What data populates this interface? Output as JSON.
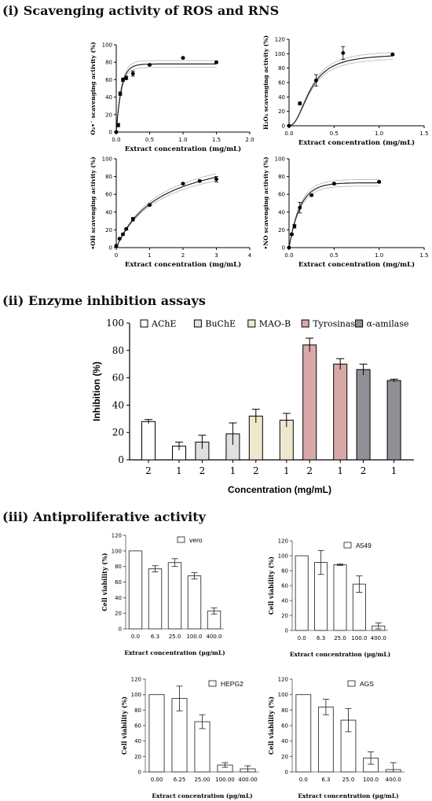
{
  "sections": {
    "ros": "(i) Scavenging activity of ROS and RNS",
    "enzyme": "(ii) Enzyme inhibition assays",
    "anti": "(iii) Antiproliferative activity"
  },
  "chart_data": [
    {
      "id": "o2",
      "type": "scatter",
      "xlabel": "Extract concentration (mg/mL)",
      "ylabel": "O₂•⁻ scavenging activity (%)",
      "xlim": [
        0,
        2
      ],
      "ylim": [
        0,
        100
      ],
      "xticks": [
        "0.0",
        "0.5",
        "1.0",
        "1.5",
        "2.0"
      ],
      "yticks": [
        "0",
        "20",
        "40",
        "60",
        "80",
        "100"
      ],
      "x": [
        0,
        0.03,
        0.06,
        0.1,
        0.15,
        0.25,
        0.5,
        1.0,
        1.5
      ],
      "y": [
        0,
        8,
        44,
        60,
        62,
        67,
        77,
        85,
        80
      ],
      "err": [
        0,
        2,
        2,
        2,
        2,
        3,
        1,
        1,
        1
      ],
      "fit": {
        "model": "exp",
        "ymax": 78,
        "k": 13
      }
    },
    {
      "id": "h2o2",
      "type": "scatter",
      "xlabel": "Extract concentration (mg/mL)",
      "ylabel": "H₂O₂ scavenging activity (%)",
      "xlim": [
        0,
        1.5
      ],
      "ylim": [
        0,
        120
      ],
      "xticks": [
        "0.0",
        "0.5",
        "1.0",
        "1.5"
      ],
      "yticks": [
        "0",
        "20",
        "40",
        "60",
        "80",
        "100",
        "120"
      ],
      "x": [
        0,
        0.12,
        0.3,
        0.6,
        1.15
      ],
      "y": [
        0,
        31,
        63,
        101,
        99
      ],
      "err": [
        0,
        2,
        8,
        9,
        1
      ],
      "fit": {
        "model": "sigmoid",
        "ymax": 100,
        "x50": 0.24,
        "h": 2.2
      }
    },
    {
      "id": "oh",
      "type": "scatter",
      "xlabel": "Extract concentration (mg/mL)",
      "ylabel": "•OH scavenging activity (%)",
      "xlim": [
        0,
        4
      ],
      "ylim": [
        0,
        100
      ],
      "xticks": [
        "0",
        "1",
        "2",
        "3",
        "4"
      ],
      "yticks": [
        "0",
        "20",
        "40",
        "60",
        "80",
        "100"
      ],
      "x": [
        0,
        0.1,
        0.2,
        0.3,
        0.5,
        1.0,
        2.0,
        2.5,
        3.0
      ],
      "y": [
        2,
        10,
        15,
        21,
        32,
        48,
        72,
        75,
        77
      ],
      "err": [
        1,
        1,
        1,
        1,
        2,
        1,
        1,
        1,
        3
      ],
      "fit": {
        "model": "hyper",
        "ymax": 115,
        "km": 1.35
      }
    },
    {
      "id": "no",
      "type": "scatter",
      "xlabel": "Extract concentration (mg/mL)",
      "ylabel": "•NO scavenging activity (%)",
      "xlim": [
        0,
        1.5
      ],
      "ylim": [
        0,
        100
      ],
      "xticks": [
        "0.0",
        "0.5",
        "1.0",
        "1.5"
      ],
      "yticks": [
        "0",
        "20",
        "40",
        "60",
        "80",
        "100"
      ],
      "x": [
        0,
        0.03,
        0.06,
        0.12,
        0.25,
        0.5,
        1.0
      ],
      "y": [
        0,
        15,
        24,
        45,
        59,
        72,
        74
      ],
      "err": [
        0,
        1,
        2,
        6,
        1,
        1,
        1
      ],
      "fit": {
        "model": "exp",
        "ymax": 73,
        "k": 8
      }
    },
    {
      "id": "enzyme",
      "type": "bar",
      "xlabel": "Concentration (mg/mL)",
      "ylabel": "Inhibition (%)",
      "ylim": [
        0,
        100
      ],
      "yticks": [
        "0",
        "20",
        "40",
        "60",
        "80",
        "100"
      ],
      "categories": [
        "2",
        "1"
      ],
      "legend_position": "top",
      "series": [
        {
          "name": "AChE",
          "color": "#ffffff",
          "values": [
            28,
            10
          ],
          "err": [
            1.5,
            3
          ]
        },
        {
          "name": "BuChE",
          "color": "#e0e0e0",
          "values": [
            13,
            19
          ],
          "err": [
            5,
            8
          ]
        },
        {
          "name": "MAO-B",
          "color": "#efe8cf",
          "values": [
            32,
            29
          ],
          "err": [
            5,
            5
          ]
        },
        {
          "name": "Tyrosinase",
          "color": "#d9a9a8",
          "values": [
            84,
            70
          ],
          "err": [
            5,
            4
          ]
        },
        {
          "name": "α-amilase",
          "color": "#909097",
          "values": [
            66,
            58
          ],
          "err": [
            4,
            1
          ]
        }
      ]
    },
    {
      "id": "vero",
      "type": "bar",
      "legend": "vero",
      "xlabel": "Extract concentration (µg/mL)",
      "ylabel": "Cell viability (%)",
      "ylim": [
        0,
        120
      ],
      "yticks": [
        "0",
        "20",
        "40",
        "60",
        "80",
        "100",
        "120"
      ],
      "categories": [
        "0.0",
        "6.3",
        "25.0",
        "100.0",
        "400.0"
      ],
      "values": [
        100,
        77,
        85,
        68,
        23
      ],
      "err": [
        0,
        4,
        5,
        4,
        4
      ]
    },
    {
      "id": "a549",
      "type": "bar",
      "legend": "A549",
      "xlabel": "Extract concentration (µg/mL)",
      "ylabel": "Cell viability (%)",
      "ylim": [
        0,
        120
      ],
      "yticks": [
        "0",
        "20",
        "40",
        "60",
        "80",
        "100",
        "120"
      ],
      "categories": [
        "0.0",
        "6.3",
        "25.0",
        "100.0",
        "400.0"
      ],
      "values": [
        100,
        91,
        88,
        62,
        6
      ],
      "err": [
        0,
        16,
        1,
        11,
        4
      ]
    },
    {
      "id": "hepg2",
      "type": "bar",
      "legend": "HEPG2",
      "xlabel": "Extract concentration (µg/mL)",
      "ylabel": "Cell viability (%)",
      "ylim": [
        0,
        120
      ],
      "yticks": [
        "0",
        "20",
        "40",
        "60",
        "80",
        "100",
        "120"
      ],
      "categories": [
        "0.00",
        "6.25",
        "25.00",
        "100.00",
        "400.00"
      ],
      "values": [
        100,
        95,
        65,
        9,
        4
      ],
      "err": [
        0,
        16,
        9,
        3,
        4
      ]
    },
    {
      "id": "ags",
      "type": "bar",
      "legend": "AGS",
      "xlabel": "Extract concentration (µg/mL)",
      "ylabel": "Cell viability (%)",
      "ylim": [
        0,
        120
      ],
      "yticks": [
        "0",
        "20",
        "40",
        "60",
        "80",
        "100",
        "120"
      ],
      "categories": [
        "0.0",
        "6.3",
        "25.0",
        "100.0",
        "400.0"
      ],
      "values": [
        100,
        84,
        67,
        18,
        3
      ],
      "err": [
        0,
        10,
        15,
        8,
        9
      ]
    }
  ]
}
